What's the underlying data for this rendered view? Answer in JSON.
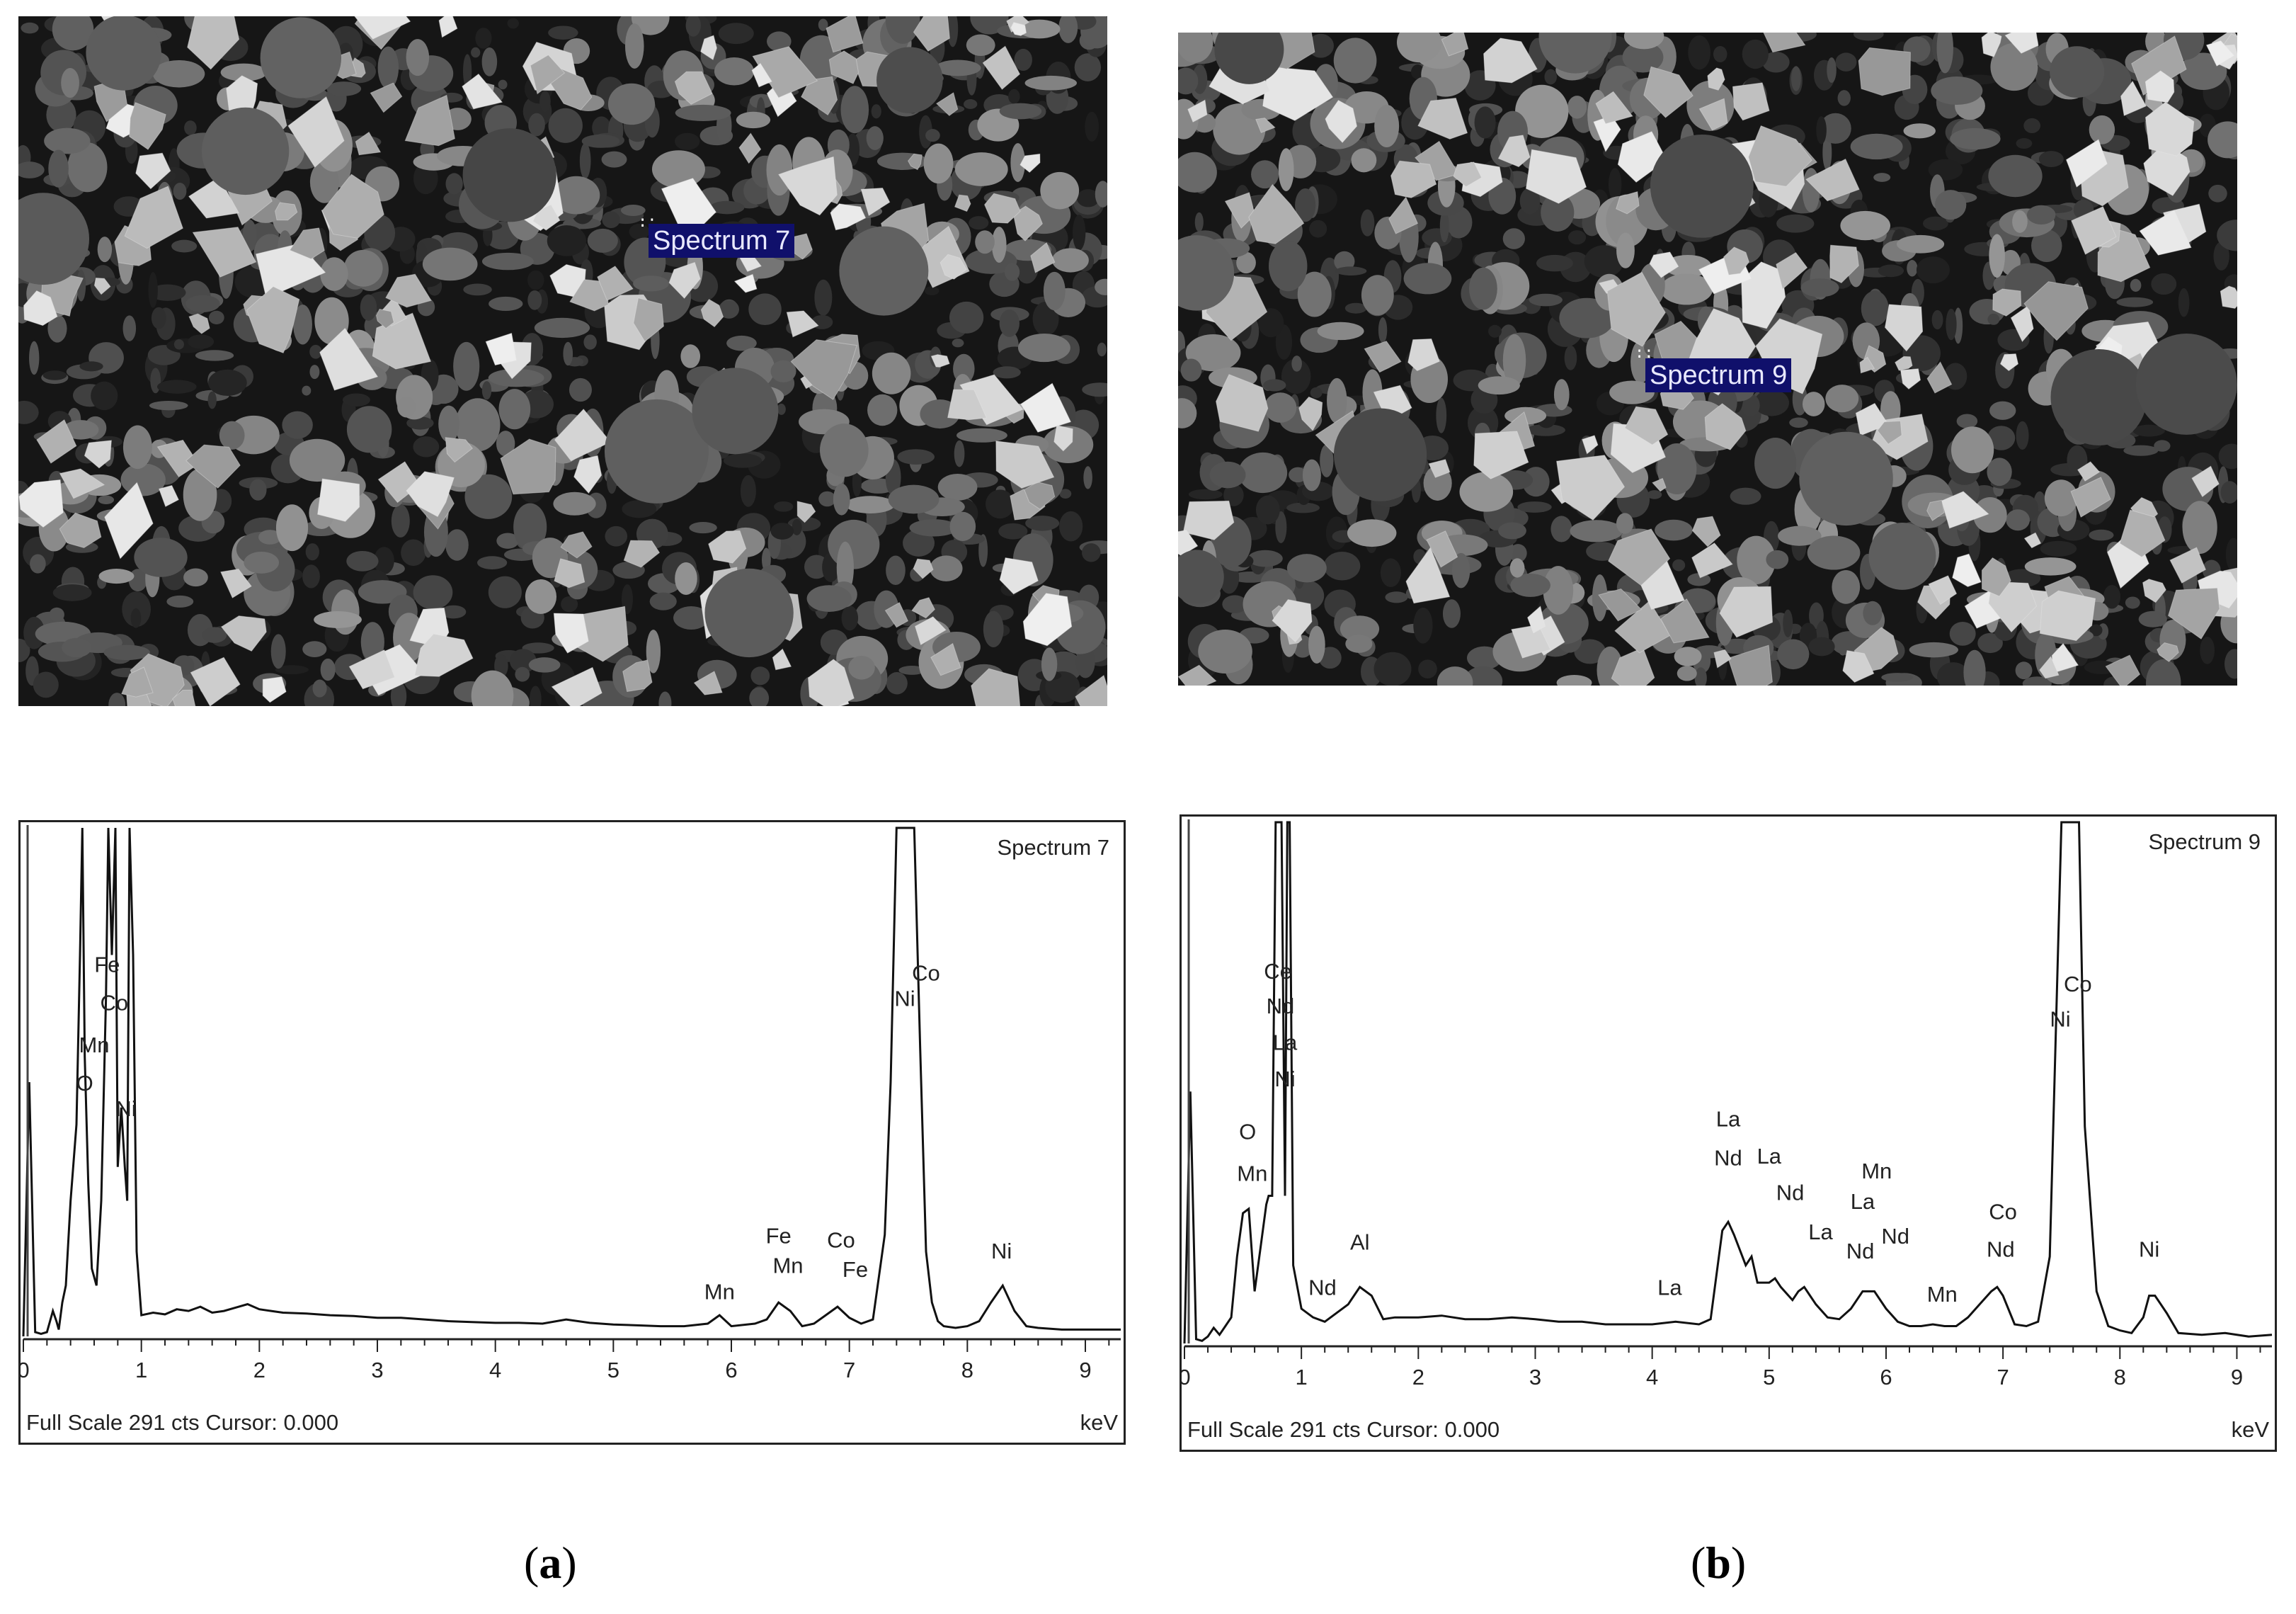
{
  "panels": [
    {
      "id": "a",
      "label_open": "(",
      "label_letter": "a",
      "label_close": ")",
      "sem_marker": "Spectrum 7",
      "eds": {
        "spectrum_title": "Spectrum 7",
        "footer": "Full Scale 291 cts Cursor: 0.000",
        "unit": "keV",
        "x_ticks": [
          "0",
          "1",
          "2",
          "3",
          "4",
          "5",
          "6",
          "7",
          "8",
          "9"
        ],
        "xlim": [
          0,
          9.3
        ],
        "peak_labels": [
          {
            "text": "Fe",
            "kev": 0.71,
            "cts": 430
          },
          {
            "text": "Co",
            "kev": 0.77,
            "cts": 385
          },
          {
            "text": "Mn",
            "kev": 0.6,
            "cts": 335
          },
          {
            "text": "O",
            "kev": 0.52,
            "cts": 290
          },
          {
            "text": "Ni",
            "kev": 0.87,
            "cts": 260
          },
          {
            "text": "Fe",
            "kev": 6.4,
            "cts": 110
          },
          {
            "text": "Mn",
            "kev": 6.48,
            "cts": 75
          },
          {
            "text": "Co",
            "kev": 6.93,
            "cts": 105
          },
          {
            "text": "Fe",
            "kev": 7.05,
            "cts": 70
          },
          {
            "text": "Mn",
            "kev": 5.9,
            "cts": 44
          },
          {
            "text": "Ni",
            "kev": 8.29,
            "cts": 92
          },
          {
            "text": "Co",
            "kev": 7.65,
            "cts": 420
          },
          {
            "text": "Ni",
            "kev": 7.47,
            "cts": 390
          }
        ]
      }
    },
    {
      "id": "b",
      "label_open": "(",
      "label_letter": "b",
      "label_close": ")",
      "sem_marker": "Spectrum 9",
      "eds": {
        "spectrum_title": "Spectrum 9",
        "footer": "Full Scale 291 cts Cursor: 0.000",
        "unit": "keV",
        "x_ticks": [
          "0",
          "1",
          "2",
          "3",
          "4",
          "5",
          "6",
          "7",
          "8",
          "9"
        ],
        "xlim": [
          0,
          9.3
        ],
        "peak_labels": [
          {
            "text": "Ce",
            "kev": 0.8,
            "cts": 420
          },
          {
            "text": "Nd",
            "kev": 0.82,
            "cts": 380
          },
          {
            "text": "La",
            "kev": 0.86,
            "cts": 338
          },
          {
            "text": "Ni",
            "kev": 0.86,
            "cts": 296
          },
          {
            "text": "O",
            "kev": 0.54,
            "cts": 235
          },
          {
            "text": "Mn",
            "kev": 0.58,
            "cts": 187
          },
          {
            "text": "Al",
            "kev": 1.5,
            "cts": 108
          },
          {
            "text": "Nd",
            "kev": 1.18,
            "cts": 56
          },
          {
            "text": "La",
            "kev": 4.65,
            "cts": 250
          },
          {
            "text": "Nd",
            "kev": 4.65,
            "cts": 205
          },
          {
            "text": "La",
            "kev": 5.0,
            "cts": 207
          },
          {
            "text": "Nd",
            "kev": 5.18,
            "cts": 165
          },
          {
            "text": "La",
            "kev": 5.44,
            "cts": 120
          },
          {
            "text": "Nd",
            "kev": 5.78,
            "cts": 98
          },
          {
            "text": "La",
            "kev": 5.8,
            "cts": 155
          },
          {
            "text": "Nd",
            "kev": 6.08,
            "cts": 115
          },
          {
            "text": "Mn",
            "kev": 5.92,
            "cts": 190
          },
          {
            "text": "La",
            "kev": 4.15,
            "cts": 56
          },
          {
            "text": "Mn",
            "kev": 6.48,
            "cts": 48
          },
          {
            "text": "Co",
            "kev": 7.0,
            "cts": 143
          },
          {
            "text": "Nd",
            "kev": 6.98,
            "cts": 100
          },
          {
            "text": "Ni",
            "kev": 8.25,
            "cts": 100
          },
          {
            "text": "Co",
            "kev": 7.64,
            "cts": 405
          },
          {
            "text": "Ni",
            "kev": 7.49,
            "cts": 365
          }
        ]
      }
    }
  ],
  "chart_data": [
    {
      "type": "line",
      "title": "Spectrum 7",
      "xlabel": "keV",
      "xlim": [
        0,
        9.3
      ],
      "full_scale_cts": 291,
      "series": [
        {
          "x": [
            0,
            0.05,
            0.1,
            0.15,
            0.2,
            0.25,
            0.28,
            0.3,
            0.33,
            0.36,
            0.4,
            0.45,
            0.48,
            0.5,
            0.52,
            0.55,
            0.58,
            0.62,
            0.66,
            0.7,
            0.72,
            0.75,
            0.78,
            0.8,
            0.83,
            0.86,
            0.88,
            0.9,
            0.93,
            0.96,
            1.0,
            1.1,
            1.2,
            1.3,
            1.4,
            1.5,
            1.6,
            1.7,
            1.8,
            1.9,
            2.0,
            2.1,
            2.2,
            2.4,
            2.6,
            2.8,
            3.0,
            3.2,
            3.4,
            3.6,
            3.8,
            4.0,
            4.2,
            4.4,
            4.6,
            4.7,
            4.8,
            5.0,
            5.2,
            5.4,
            5.6,
            5.8,
            5.9,
            6.0,
            6.2,
            6.3,
            6.4,
            6.5,
            6.6,
            6.7,
            6.8,
            6.9,
            7.0,
            7.1,
            7.2,
            7.3,
            7.35,
            7.4,
            7.45,
            7.5,
            7.55,
            7.6,
            7.65,
            7.7,
            7.75,
            7.8,
            7.9,
            8.0,
            8.1,
            8.2,
            8.3,
            8.4,
            8.5,
            8.6,
            8.8,
            9.0,
            9.3
          ],
          "y": [
            0,
            300,
            5,
            3,
            5,
            30,
            18,
            8,
            40,
            60,
            160,
            250,
            450,
            600,
            330,
            180,
            80,
            60,
            160,
            400,
            600,
            450,
            600,
            200,
            270,
            200,
            160,
            600,
            450,
            100,
            25,
            28,
            26,
            32,
            30,
            35,
            28,
            30,
            34,
            38,
            32,
            30,
            28,
            27,
            25,
            24,
            22,
            22,
            20,
            18,
            17,
            16,
            16,
            15,
            20,
            18,
            16,
            14,
            13,
            12,
            12,
            15,
            25,
            12,
            15,
            20,
            40,
            30,
            12,
            15,
            25,
            35,
            22,
            15,
            20,
            120,
            300,
            600,
            600,
            600,
            600,
            340,
            100,
            40,
            18,
            12,
            10,
            12,
            18,
            40,
            60,
            30,
            12,
            10,
            8,
            8,
            8
          ]
        }
      ],
      "annotations": [
        "Fe",
        "Co",
        "Mn",
        "O",
        "Ni",
        "Fe",
        "Mn",
        "Co",
        "Fe",
        "Mn",
        "Ni",
        "Co",
        "Ni"
      ]
    },
    {
      "type": "line",
      "title": "Spectrum 9",
      "xlabel": "keV",
      "xlim": [
        0,
        9.3
      ],
      "full_scale_cts": 291,
      "series": [
        {
          "x": [
            0,
            0.05,
            0.1,
            0.15,
            0.2,
            0.25,
            0.3,
            0.35,
            0.4,
            0.45,
            0.5,
            0.55,
            0.6,
            0.65,
            0.7,
            0.72,
            0.75,
            0.78,
            0.8,
            0.83,
            0.86,
            0.88,
            0.9,
            0.93,
            1.0,
            1.1,
            1.2,
            1.3,
            1.4,
            1.5,
            1.6,
            1.7,
            1.8,
            2.0,
            2.2,
            2.4,
            2.6,
            2.8,
            3.0,
            3.2,
            3.4,
            3.6,
            3.8,
            4.0,
            4.2,
            4.4,
            4.5,
            4.6,
            4.65,
            4.7,
            4.8,
            4.85,
            4.9,
            5.0,
            5.05,
            5.1,
            5.2,
            5.25,
            5.3,
            5.35,
            5.4,
            5.5,
            5.6,
            5.7,
            5.8,
            5.9,
            6.0,
            6.1,
            6.2,
            6.3,
            6.4,
            6.5,
            6.6,
            6.7,
            6.8,
            6.9,
            6.95,
            7.0,
            7.1,
            7.2,
            7.3,
            7.4,
            7.45,
            7.5,
            7.55,
            7.6,
            7.65,
            7.7,
            7.8,
            7.9,
            8.0,
            8.1,
            8.2,
            8.25,
            8.3,
            8.4,
            8.5,
            8.7,
            8.9,
            9.1,
            9.3
          ],
          "y": [
            0,
            290,
            5,
            3,
            8,
            18,
            10,
            20,
            30,
            100,
            150,
            155,
            60,
            110,
            160,
            170,
            170,
            600,
            600,
            600,
            170,
            600,
            600,
            90,
            40,
            30,
            25,
            35,
            45,
            65,
            55,
            28,
            30,
            30,
            32,
            28,
            28,
            30,
            28,
            25,
            25,
            22,
            22,
            22,
            25,
            22,
            28,
            130,
            140,
            125,
            90,
            100,
            70,
            70,
            75,
            65,
            50,
            60,
            65,
            55,
            45,
            30,
            28,
            40,
            60,
            60,
            40,
            25,
            20,
            20,
            22,
            20,
            20,
            30,
            45,
            60,
            65,
            55,
            22,
            20,
            25,
            100,
            350,
            600,
            600,
            600,
            600,
            250,
            60,
            20,
            15,
            12,
            30,
            55,
            55,
            35,
            12,
            10,
            12,
            8,
            10
          ]
        }
      ],
      "annotations": [
        "Ce",
        "Nd",
        "La",
        "Ni",
        "O",
        "Mn",
        "Al",
        "Nd",
        "La",
        "Nd",
        "La",
        "Nd",
        "La",
        "Nd",
        "La",
        "Nd",
        "Mn",
        "La",
        "Mn",
        "Co",
        "Nd",
        "Ni",
        "Co",
        "Ni"
      ]
    }
  ]
}
